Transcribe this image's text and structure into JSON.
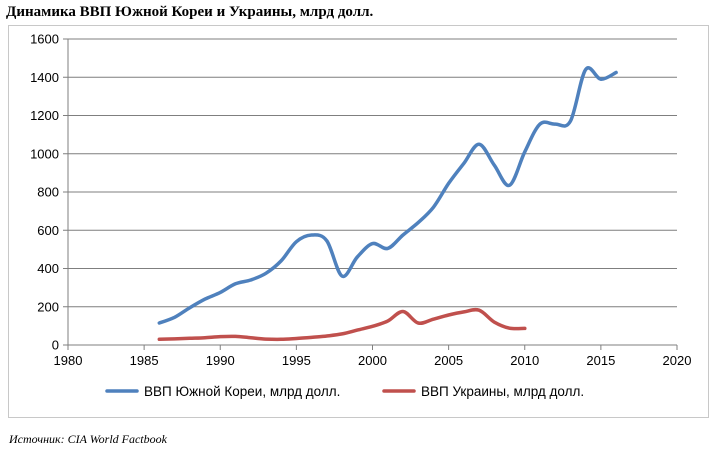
{
  "chart_data": {
    "type": "line",
    "title": "Динамика ВВП Южной Кореи и Украины, млрд долл.",
    "xlabel": "",
    "ylabel": "",
    "xlim": [
      1980,
      2020
    ],
    "ylim": [
      0,
      1600
    ],
    "x_ticks": [
      1980,
      1985,
      1990,
      1995,
      2000,
      2005,
      2010,
      2015,
      2020
    ],
    "y_ticks": [
      0,
      200,
      400,
      600,
      800,
      1000,
      1200,
      1400,
      1600
    ],
    "grid": "horizontal",
    "legend_position": "bottom",
    "series": [
      {
        "name": "ВВП Южной Кореи, млрд долл.",
        "color": "#4f81bd",
        "x": [
          1986,
          1987,
          1988,
          1989,
          1990,
          1991,
          1992,
          1993,
          1994,
          1995,
          1996,
          1997,
          1998,
          1999,
          2000,
          2001,
          2002,
          2003,
          2004,
          2005,
          2006,
          2007,
          2008,
          2009,
          2010,
          2011,
          2012,
          2013,
          2014,
          2015,
          2016
        ],
        "values": [
          115,
          145,
          195,
          240,
          275,
          320,
          340,
          375,
          440,
          540,
          575,
          545,
          360,
          460,
          530,
          505,
          575,
          640,
          720,
          845,
          950,
          1050,
          940,
          835,
          1010,
          1155,
          1155,
          1170,
          1440,
          1390,
          1425
        ]
      },
      {
        "name": "ВВП Украины, млрд долл.",
        "color": "#c0504d",
        "x": [
          1986,
          1987,
          1988,
          1989,
          1990,
          1991,
          1992,
          1993,
          1994,
          1995,
          1996,
          1997,
          1998,
          1999,
          2000,
          2001,
          2002,
          2003,
          2004,
          2005,
          2006,
          2007,
          2008,
          2009,
          2010
        ],
        "values": [
          30,
          32,
          35,
          38,
          44,
          45,
          38,
          31,
          30,
          34,
          40,
          47,
          58,
          78,
          98,
          125,
          175,
          115,
          135,
          157,
          173,
          182,
          120,
          88,
          87
        ]
      }
    ]
  },
  "source": "Источник: CIA World Factbook",
  "colors": {
    "grid": "#7f7f7f",
    "axis": "#7f7f7f",
    "frame": "#c8c8c8"
  }
}
